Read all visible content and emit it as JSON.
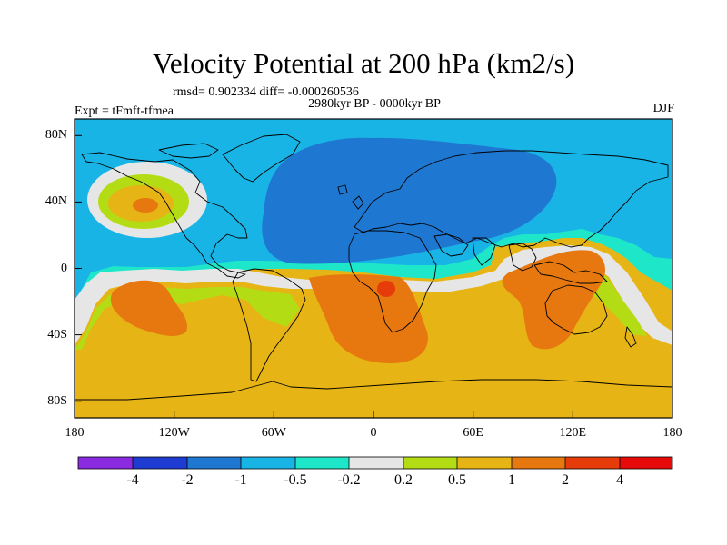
{
  "title": "Velocity Potential at 200 hPa (km2/s)",
  "stats": "rmsd= 0.902334 diff= -0.000260536",
  "period": "2980kyr BP - 0000kyr BP",
  "experiment": "Expt = tFmft-tfmea",
  "season": "DJF",
  "axes": {
    "x_ticks": [
      "180",
      "120W",
      "60W",
      "0",
      "60E",
      "120E",
      "180"
    ],
    "x_tick_values": [
      -180,
      -120,
      -60,
      0,
      60,
      120,
      180
    ],
    "y_ticks": [
      "80N",
      "40N",
      "0",
      "40S",
      "80S"
    ],
    "y_tick_values": [
      80,
      40,
      0,
      -40,
      -80
    ],
    "lon_range": [
      -180,
      180
    ],
    "lat_range": [
      -90,
      90
    ]
  },
  "colorbar": {
    "labels": [
      "-4",
      "-2",
      "-1",
      "-0.5",
      "-0.2",
      "0.2",
      "0.5",
      "1",
      "2",
      "4"
    ],
    "colors": [
      "#8a2be2",
      "#1e3cd2",
      "#1e78d2",
      "#19b4e6",
      "#1ee6c8",
      "#e6e6e6",
      "#b4dc14",
      "#e6b414",
      "#e6780f",
      "#e63c0a",
      "#e60a0a"
    ]
  },
  "colors": {
    "land_outline": "#000000",
    "frame": "#000000"
  }
}
